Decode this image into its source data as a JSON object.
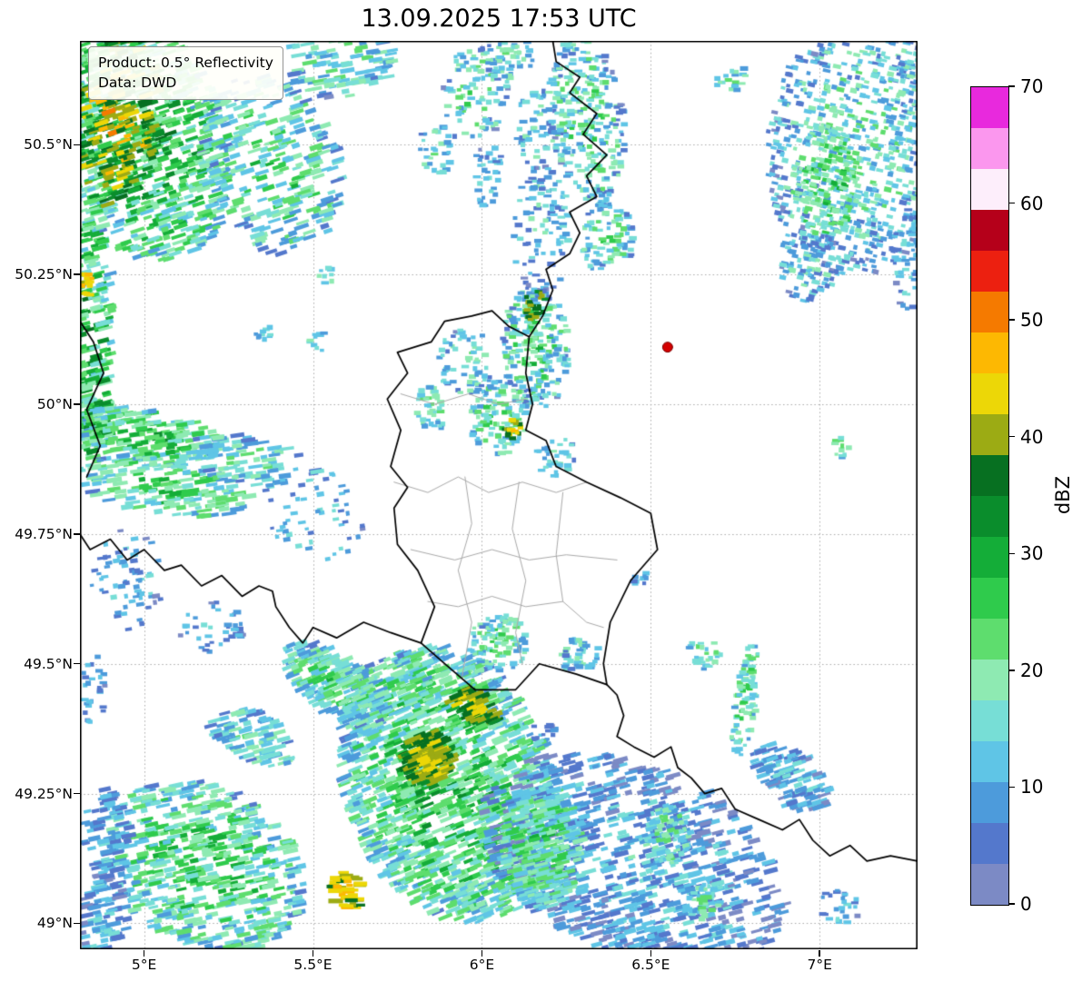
{
  "title": "13.09.2025 17:53 UTC",
  "info_box": {
    "line1": "Product: 0.5° Reflectivity",
    "line2": "Data: DWD"
  },
  "colorbar": {
    "label": "dBZ",
    "ticks": [
      0,
      10,
      20,
      30,
      40,
      50,
      60,
      70
    ]
  },
  "chart_data": {
    "type": "heatmap",
    "title": "13.09.2025 17:53 UTC",
    "product": "0.5° Reflectivity",
    "source": "DWD",
    "units": "dBZ",
    "grid": {
      "color": "#aaaaaa",
      "style": "dotted"
    },
    "extent": {
      "lon_min": 4.81,
      "lon_max": 7.29,
      "lat_min": 48.95,
      "lat_max": 50.7
    },
    "lon_ticks": [
      {
        "v": 5.0,
        "label": "5°E"
      },
      {
        "v": 5.5,
        "label": "5.5°E"
      },
      {
        "v": 6.0,
        "label": "6°E"
      },
      {
        "v": 6.5,
        "label": "6.5°E"
      },
      {
        "v": 7.0,
        "label": "7°E"
      }
    ],
    "lat_ticks": [
      {
        "v": 50.5,
        "label": "50.5°N"
      },
      {
        "v": 50.25,
        "label": "50.25°N"
      },
      {
        "v": 50.0,
        "label": "50°N"
      },
      {
        "v": 49.75,
        "label": "49.75°N"
      },
      {
        "v": 49.5,
        "label": "49.5°N"
      },
      {
        "v": 49.25,
        "label": "49.25°N"
      },
      {
        "v": 49.0,
        "label": "49°N"
      }
    ],
    "colormap": {
      "vmin": 0,
      "vmax": 70,
      "step": 3.5,
      "colors": [
        "#7c8ac5",
        "#5478cc",
        "#4d9bdb",
        "#5fc5e6",
        "#77ded6",
        "#8eeab2",
        "#5edd6e",
        "#2fcb4c",
        "#14ad38",
        "#0a8d2c",
        "#077021",
        "#9cab14",
        "#ecd707",
        "#fdb802",
        "#f57a00",
        "#ec2010",
        "#b5001a",
        "#fdeefb",
        "#fb97ee",
        "#e829dd"
      ]
    },
    "marker": {
      "lon": 6.55,
      "lat": 50.11,
      "color": "#d40000",
      "edge": "#7a0000"
    },
    "borders": {
      "country_color": "#000000",
      "admin_color": "#aaaaaa",
      "country": [
        [
          5.97,
          50.17,
          6.03,
          50.18,
          6.08,
          50.15,
          6.14,
          50.13,
          6.13,
          50.06,
          6.15,
          50.0,
          6.13,
          49.95,
          6.19,
          49.93,
          6.22,
          49.88,
          6.31,
          49.85,
          6.41,
          49.82,
          6.5,
          49.79,
          6.52,
          49.72,
          6.44,
          49.66,
          6.38,
          49.58,
          6.36,
          49.5,
          6.37,
          49.46,
          6.28,
          49.48,
          6.17,
          49.5,
          6.1,
          49.45,
          5.98,
          49.45,
          5.89,
          49.5,
          5.82,
          49.54,
          5.86,
          49.61,
          5.81,
          49.68,
          5.75,
          49.73,
          5.74,
          49.8,
          5.78,
          49.84,
          5.73,
          49.88,
          5.76,
          49.95,
          5.72,
          50.01,
          5.78,
          50.06,
          5.75,
          50.1,
          5.85,
          50.12,
          5.89,
          50.16,
          5.97,
          50.17
        ],
        [
          6.14,
          50.13,
          6.18,
          50.17,
          6.21,
          50.22,
          6.19,
          50.26,
          6.26,
          50.29,
          6.29,
          50.33,
          6.26,
          50.37,
          6.34,
          50.4,
          6.31,
          50.44,
          6.37,
          50.48,
          6.3,
          50.52,
          6.34,
          50.56,
          6.26,
          50.6,
          6.29,
          50.63,
          6.22,
          50.66,
          6.21,
          50.7
        ],
        [
          5.82,
          49.54,
          5.73,
          49.56,
          5.65,
          49.58,
          5.57,
          49.55,
          5.5,
          49.57,
          5.47,
          49.54,
          5.43,
          49.57,
          5.39,
          49.61,
          5.38,
          49.64,
          5.34,
          49.65,
          5.29,
          49.63,
          5.23,
          49.67,
          5.17,
          49.65,
          5.11,
          49.69,
          5.06,
          49.68,
          5.0,
          49.72,
          4.95,
          49.7,
          4.9,
          49.74,
          4.84,
          49.72,
          4.81,
          49.75
        ],
        [
          4.81,
          50.16,
          4.85,
          50.12,
          4.88,
          50.06,
          4.83,
          49.99,
          4.87,
          49.92,
          4.83,
          49.86
        ],
        [
          6.37,
          49.46,
          6.4,
          49.44,
          6.42,
          49.4,
          6.4,
          49.36,
          6.45,
          49.34,
          6.51,
          49.32,
          6.56,
          49.34,
          6.58,
          49.3,
          6.62,
          49.28,
          6.66,
          49.25,
          6.71,
          49.26,
          6.75,
          49.22,
          6.82,
          49.2,
          6.89,
          49.18,
          6.94,
          49.2,
          6.98,
          49.16,
          7.03,
          49.13,
          7.09,
          49.15,
          7.14,
          49.12,
          7.21,
          49.13,
          7.29,
          49.12
        ]
      ],
      "admin": [
        [
          5.74,
          49.85,
          5.84,
          49.83,
          5.93,
          49.86,
          6.02,
          49.83,
          6.12,
          49.85,
          6.22,
          49.83,
          6.31,
          49.85
        ],
        [
          5.79,
          49.72,
          5.92,
          49.7,
          6.03,
          49.72,
          6.14,
          49.7,
          6.25,
          49.71,
          6.4,
          49.7
        ],
        [
          5.95,
          49.86,
          5.97,
          49.77,
          5.93,
          49.68,
          5.97,
          49.58,
          5.94,
          49.47
        ],
        [
          6.11,
          49.85,
          6.09,
          49.76,
          6.13,
          49.66,
          6.1,
          49.56,
          6.12,
          49.5
        ],
        [
          5.84,
          49.62,
          5.93,
          49.61,
          6.03,
          49.63,
          6.13,
          49.61,
          6.24,
          49.62,
          6.31,
          49.58,
          6.36,
          49.57
        ],
        [
          6.24,
          49.83,
          6.22,
          49.71,
          6.24,
          49.62
        ],
        [
          5.76,
          50.02,
          5.86,
          50.0,
          5.96,
          50.02,
          6.05,
          50.0,
          6.13,
          50.01
        ]
      ]
    },
    "precipitation_cells": [
      {
        "lon": 4.98,
        "lat": 50.52,
        "rx": 0.3,
        "ry": 0.22,
        "rot": -30,
        "n": 950,
        "dbz": 27,
        "spread": 10,
        "drop": 12,
        "tilt": -18,
        "streak": 1
      },
      {
        "lon": 4.92,
        "lat": 50.55,
        "rx": 0.13,
        "ry": 0.17,
        "rot": -20,
        "n": 220,
        "dbz": 43,
        "spread": 7,
        "drop": 8,
        "tilt": -18,
        "streak": 1
      },
      {
        "lon": 5.38,
        "lat": 50.46,
        "rx": 0.22,
        "ry": 0.16,
        "rot": -25,
        "n": 280,
        "dbz": 21,
        "spread": 9,
        "drop": 10,
        "tilt": -18,
        "streak": 1
      },
      {
        "lon": 5.58,
        "lat": 50.66,
        "rx": 0.16,
        "ry": 0.07,
        "rot": 0,
        "n": 110,
        "dbz": 18,
        "spread": 8,
        "drop": 8,
        "tilt": -10,
        "streak": 1
      },
      {
        "lon": 4.85,
        "lat": 50.16,
        "rx": 0.055,
        "ry": 0.24,
        "rot": 0,
        "n": 170,
        "dbz": 26,
        "spread": 11,
        "drop": 8,
        "tilt": -15,
        "streak": 1
      },
      {
        "lon": 4.83,
        "lat": 50.23,
        "rx": 0.02,
        "ry": 0.035,
        "rot": 0,
        "n": 16,
        "dbz": 46,
        "spread": 4,
        "drop": 4
      },
      {
        "lon": 4.86,
        "lat": 49.97,
        "rx": 0.05,
        "ry": 0.09,
        "rot": 0,
        "n": 70,
        "dbz": 29,
        "spread": 10,
        "drop": 8,
        "tilt": -15,
        "streak": 1
      },
      {
        "lon": 5.98,
        "lat": 50.6,
        "rx": 0.1,
        "ry": 0.09,
        "rot": 0,
        "n": 90,
        "dbz": 18,
        "spread": 8,
        "drop": 8
      },
      {
        "lon": 6.08,
        "lat": 50.67,
        "rx": 0.08,
        "ry": 0.05,
        "rot": 0,
        "n": 50,
        "dbz": 16,
        "spread": 7,
        "drop": 6
      },
      {
        "lon": 6.16,
        "lat": 50.53,
        "rx": 0.06,
        "ry": 0.09,
        "rot": 0,
        "n": 55,
        "dbz": 14,
        "spread": 7,
        "drop": 6
      },
      {
        "lon": 6.31,
        "lat": 50.55,
        "rx": 0.11,
        "ry": 0.17,
        "rot": 15,
        "n": 290,
        "dbz": 19,
        "spread": 9,
        "drop": 9
      },
      {
        "lon": 6.37,
        "lat": 50.32,
        "rx": 0.08,
        "ry": 0.07,
        "rot": 0,
        "n": 90,
        "dbz": 19,
        "spread": 8,
        "drop": 8
      },
      {
        "lon": 6.18,
        "lat": 50.33,
        "rx": 0.09,
        "ry": 0.13,
        "rot": 0,
        "n": 110,
        "dbz": 14,
        "spread": 7,
        "drop": 6
      },
      {
        "lon": 6.02,
        "lat": 50.44,
        "rx": 0.05,
        "ry": 0.06,
        "rot": 0,
        "n": 35,
        "dbz": 13,
        "spread": 6,
        "drop": 5
      },
      {
        "lon": 5.87,
        "lat": 50.49,
        "rx": 0.06,
        "ry": 0.05,
        "rot": 0,
        "n": 32,
        "dbz": 17,
        "spread": 7,
        "drop": 6
      },
      {
        "lon": 6.16,
        "lat": 50.11,
        "rx": 0.1,
        "ry": 0.12,
        "rot": 15,
        "n": 240,
        "dbz": 20,
        "spread": 9,
        "drop": 9
      },
      {
        "lon": 6.16,
        "lat": 50.19,
        "rx": 0.035,
        "ry": 0.03,
        "rot": 0,
        "n": 26,
        "dbz": 40,
        "spread": 4,
        "drop": 4
      },
      {
        "lon": 5.95,
        "lat": 50.08,
        "rx": 0.08,
        "ry": 0.07,
        "rot": 0,
        "n": 65,
        "dbz": 17,
        "spread": 8,
        "drop": 7
      },
      {
        "lon": 5.85,
        "lat": 49.99,
        "rx": 0.05,
        "ry": 0.045,
        "rot": 0,
        "n": 40,
        "dbz": 19,
        "spread": 7,
        "drop": 6
      },
      {
        "lon": 6.05,
        "lat": 49.98,
        "rx": 0.09,
        "ry": 0.08,
        "rot": 0,
        "n": 110,
        "dbz": 20,
        "spread": 8,
        "drop": 8
      },
      {
        "lon": 6.09,
        "lat": 49.955,
        "rx": 0.025,
        "ry": 0.022,
        "rot": 0,
        "n": 18,
        "dbz": 43,
        "spread": 4,
        "drop": 3
      },
      {
        "lon": 6.22,
        "lat": 49.9,
        "rx": 0.06,
        "ry": 0.04,
        "rot": 0,
        "n": 35,
        "dbz": 15,
        "spread": 6,
        "drop": 5
      },
      {
        "lon": 5.52,
        "lat": 50.12,
        "rx": 0.035,
        "ry": 0.02,
        "rot": 0,
        "n": 9,
        "dbz": 16,
        "spread": 5,
        "drop": 3
      },
      {
        "lon": 5.36,
        "lat": 50.13,
        "rx": 0.035,
        "ry": 0.02,
        "rot": 0,
        "n": 10,
        "dbz": 14,
        "spread": 5,
        "drop": 3
      },
      {
        "lon": 5.54,
        "lat": 50.25,
        "rx": 0.03,
        "ry": 0.018,
        "rot": 0,
        "n": 8,
        "dbz": 18,
        "spread": 5,
        "drop": 3
      },
      {
        "lon": 7.12,
        "lat": 50.5,
        "rx": 0.28,
        "ry": 0.25,
        "rot": 20,
        "n": 850,
        "dbz": 17,
        "spread": 8,
        "drop": 9,
        "tilt": 12
      },
      {
        "lon": 7.02,
        "lat": 50.43,
        "rx": 0.1,
        "ry": 0.11,
        "rot": 0,
        "n": 170,
        "dbz": 25,
        "spread": 7,
        "drop": 8,
        "tilt": 12
      },
      {
        "lon": 6.97,
        "lat": 50.27,
        "rx": 0.09,
        "ry": 0.08,
        "rot": 0,
        "n": 90,
        "dbz": 14,
        "spread": 7,
        "drop": 6,
        "tilt": 12
      },
      {
        "lon": 7.26,
        "lat": 50.28,
        "rx": 0.05,
        "ry": 0.1,
        "rot": 0,
        "n": 60,
        "dbz": 12,
        "spread": 6,
        "drop": 5
      },
      {
        "lon": 6.74,
        "lat": 50.63,
        "rx": 0.05,
        "ry": 0.03,
        "rot": 0,
        "n": 18,
        "dbz": 16,
        "spread": 6,
        "drop": 4
      },
      {
        "lon": 7.07,
        "lat": 49.92,
        "rx": 0.035,
        "ry": 0.022,
        "rot": 0,
        "n": 11,
        "dbz": 18,
        "spread": 6,
        "drop": 3
      },
      {
        "lon": 5.02,
        "lat": 49.94,
        "rx": 0.23,
        "ry": 0.05,
        "rot": -6,
        "n": 190,
        "dbz": 25,
        "spread": 8,
        "drop": 9,
        "tilt": -8,
        "streak": 1
      },
      {
        "lon": 5.06,
        "lat": 49.84,
        "rx": 0.26,
        "ry": 0.055,
        "rot": -6,
        "n": 170,
        "dbz": 23,
        "spread": 8,
        "drop": 9,
        "tilt": -8,
        "streak": 1
      },
      {
        "lon": 5.32,
        "lat": 49.89,
        "rx": 0.2,
        "ry": 0.045,
        "rot": -8,
        "n": 80,
        "dbz": 17,
        "spread": 7,
        "drop": 7,
        "tilt": -8,
        "streak": 1
      },
      {
        "lon": 5.5,
        "lat": 49.79,
        "rx": 0.15,
        "ry": 0.09,
        "rot": -10,
        "n": 55,
        "dbz": 13,
        "spread": 6,
        "drop": 5,
        "tilt": -8
      },
      {
        "lon": 4.95,
        "lat": 49.66,
        "rx": 0.11,
        "ry": 0.1,
        "rot": 0,
        "n": 65,
        "dbz": 11,
        "spread": 6,
        "drop": 5,
        "tilt": -8
      },
      {
        "lon": 5.2,
        "lat": 49.57,
        "rx": 0.1,
        "ry": 0.05,
        "rot": 0,
        "n": 38,
        "dbz": 11,
        "spread": 5,
        "drop": 4
      },
      {
        "lon": 4.85,
        "lat": 49.45,
        "rx": 0.04,
        "ry": 0.08,
        "rot": 0,
        "n": 28,
        "dbz": 10,
        "spread": 5,
        "drop": 4
      },
      {
        "lon": 6.78,
        "lat": 49.43,
        "rx": 0.035,
        "ry": 0.11,
        "rot": -12,
        "n": 85,
        "dbz": 21,
        "spread": 7,
        "drop": 7
      },
      {
        "lon": 6.66,
        "lat": 49.52,
        "rx": 0.05,
        "ry": 0.03,
        "rot": 0,
        "n": 24,
        "dbz": 19,
        "spread": 6,
        "drop": 5
      },
      {
        "lon": 6.47,
        "lat": 49.66,
        "rx": 0.03,
        "ry": 0.018,
        "rot": 0,
        "n": 9,
        "dbz": 11,
        "spread": 4,
        "drop": 3
      },
      {
        "lon": 6.17,
        "lat": 49.37,
        "rx": 0.05,
        "ry": 0.02,
        "rot": 0,
        "n": 14,
        "dbz": 9,
        "spread": 4,
        "drop": 3
      },
      {
        "lon": 5.9,
        "lat": 49.27,
        "rx": 0.34,
        "ry": 0.25,
        "rot": -25,
        "n": 1500,
        "dbz": 25,
        "spread": 9,
        "drop": 11,
        "tilt": -22,
        "streak": 1
      },
      {
        "lon": 5.84,
        "lat": 49.32,
        "rx": 0.075,
        "ry": 0.05,
        "rot": 0,
        "n": 170,
        "dbz": 42,
        "spread": 4,
        "drop": 5,
        "tilt": -22,
        "streak": 1
      },
      {
        "lon": 5.98,
        "lat": 49.42,
        "rx": 0.08,
        "ry": 0.028,
        "rot": -15,
        "n": 65,
        "dbz": 41,
        "spread": 4,
        "drop": 4,
        "tilt": -22,
        "streak": 1
      },
      {
        "lon": 5.6,
        "lat": 49.06,
        "rx": 0.045,
        "ry": 0.04,
        "rot": 0,
        "n": 42,
        "dbz": 44,
        "spread": 5,
        "drop": 4,
        "streak": 1
      },
      {
        "lon": 5.57,
        "lat": 49.46,
        "rx": 0.17,
        "ry": 0.06,
        "rot": -20,
        "n": 260,
        "dbz": 21,
        "spread": 8,
        "drop": 9,
        "tilt": -22,
        "streak": 1
      },
      {
        "lon": 5.32,
        "lat": 49.36,
        "rx": 0.13,
        "ry": 0.05,
        "rot": -15,
        "n": 95,
        "dbz": 17,
        "spread": 7,
        "drop": 7,
        "tilt": -15,
        "streak": 1
      },
      {
        "lon": 6.05,
        "lat": 49.54,
        "rx": 0.09,
        "ry": 0.055,
        "rot": 0,
        "n": 110,
        "dbz": 19,
        "spread": 8,
        "drop": 7
      },
      {
        "lon": 6.29,
        "lat": 49.52,
        "rx": 0.06,
        "ry": 0.04,
        "rot": 0,
        "n": 45,
        "dbz": 16,
        "spread": 7,
        "drop": 6
      },
      {
        "lon": 5.18,
        "lat": 49.11,
        "rx": 0.3,
        "ry": 0.16,
        "rot": -10,
        "n": 600,
        "dbz": 23,
        "spread": 9,
        "drop": 10,
        "tilt": -12,
        "streak": 1
      },
      {
        "lon": 4.89,
        "lat": 49.17,
        "rx": 0.07,
        "ry": 0.09,
        "rot": 0,
        "n": 70,
        "dbz": 10,
        "spread": 6,
        "drop": 4,
        "tilt": -12,
        "streak": 1
      },
      {
        "lon": 4.88,
        "lat": 49.01,
        "rx": 0.07,
        "ry": 0.09,
        "rot": 0,
        "n": 80,
        "dbz": 11,
        "spread": 6,
        "drop": 4,
        "tilt": -12,
        "streak": 1
      },
      {
        "lon": 6.45,
        "lat": 49.12,
        "rx": 0.46,
        "ry": 0.19,
        "rot": -12,
        "n": 900,
        "dbz": 11,
        "spread": 7,
        "drop": 6,
        "tilt": -15,
        "streak": 1
      },
      {
        "lon": 6.18,
        "lat": 49.15,
        "rx": 0.12,
        "ry": 0.12,
        "rot": 0,
        "n": 260,
        "dbz": 23,
        "spread": 7,
        "drop": 8,
        "tilt": -15,
        "streak": 1
      },
      {
        "lon": 6.55,
        "lat": 49.17,
        "rx": 0.07,
        "ry": 0.06,
        "rot": 0,
        "n": 80,
        "dbz": 20,
        "spread": 6,
        "drop": 6,
        "tilt": -15
      },
      {
        "lon": 6.66,
        "lat": 49.04,
        "rx": 0.05,
        "ry": 0.035,
        "rot": 0,
        "n": 40,
        "dbz": 18,
        "spread": 6,
        "drop": 5
      },
      {
        "lon": 6.92,
        "lat": 49.28,
        "rx": 0.12,
        "ry": 0.055,
        "rot": -20,
        "n": 110,
        "dbz": 11,
        "spread": 6,
        "drop": 5,
        "tilt": -18,
        "streak": 1
      },
      {
        "lon": 7.06,
        "lat": 49.03,
        "rx": 0.06,
        "ry": 0.04,
        "rot": 0,
        "n": 26,
        "dbz": 11,
        "spread": 5,
        "drop": 4
      }
    ]
  }
}
